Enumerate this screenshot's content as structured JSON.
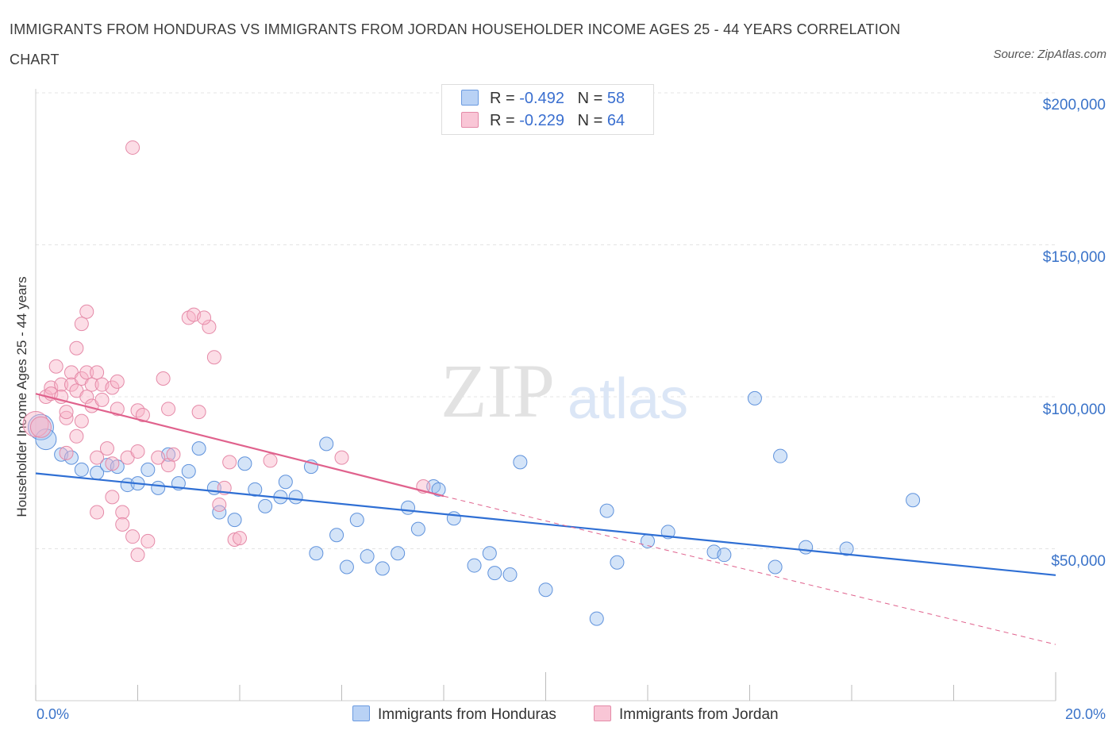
{
  "header": {
    "title": "IMMIGRANTS FROM HONDURAS VS IMMIGRANTS FROM JORDAN HOUSEHOLDER INCOME AGES 25 - 44 YEARS CORRELATION CHART",
    "source": "Source: ZipAtlas.com"
  },
  "watermark": {
    "zip": "ZIP",
    "atlas": "atlas"
  },
  "legend": {
    "r_label": "R =",
    "n_label": "N =",
    "rows": [
      {
        "r": "-0.492",
        "n": "58",
        "fill": "#b9d2f5",
        "stroke": "#6a9ae0"
      },
      {
        "r": "-0.229",
        "n": "64",
        "fill": "#f9c6d6",
        "stroke": "#e48aa8"
      }
    ]
  },
  "colors": {
    "honduras_point_fill": "rgba(160,195,240,0.45)",
    "honduras_point_stroke": "#5f92dc",
    "honduras_line": "#2f6fd4",
    "jordan_point_fill": "rgba(248,180,200,0.45)",
    "jordan_point_stroke": "#e58aa8",
    "jordan_line": "#e0628d",
    "axis_text": "#3a73c9",
    "grid": "#e4e4e4"
  },
  "chart_data": {
    "type": "scatter",
    "title": "IMMIGRANTS FROM HONDURAS VS IMMIGRANTS FROM JORDAN HOUSEHOLDER INCOME AGES 25 - 44 YEARS CORRELATION CHART",
    "xlabel": "",
    "ylabel": "Householder Income Ages 25 - 44 years",
    "xlim": [
      0,
      20
    ],
    "ylim": [
      0,
      200000
    ],
    "x_tick_labels": [
      "0.0%",
      "20.0%"
    ],
    "y_ticks": [
      50000,
      100000,
      150000,
      200000
    ],
    "y_tick_labels": [
      "$50,000",
      "$100,000",
      "$150,000",
      "$200,000"
    ],
    "grid": true,
    "legend_position": "top-center",
    "series": [
      {
        "name": "Immigrants from Honduras",
        "r": -0.492,
        "n": 58,
        "trend": {
          "x": [
            0,
            20
          ],
          "y": [
            74800,
            41300
          ]
        },
        "points": [
          [
            0.1,
            90000
          ],
          [
            0.2,
            86000
          ],
          [
            0.5,
            81000
          ],
          [
            0.7,
            80000
          ],
          [
            0.9,
            76000
          ],
          [
            1.2,
            75000
          ],
          [
            1.4,
            77500
          ],
          [
            1.6,
            77000
          ],
          [
            1.8,
            71000
          ],
          [
            2.0,
            71500
          ],
          [
            2.2,
            76000
          ],
          [
            2.4,
            70000
          ],
          [
            2.6,
            81000
          ],
          [
            2.8,
            71500
          ],
          [
            3.0,
            75500
          ],
          [
            3.2,
            83000
          ],
          [
            3.5,
            70000
          ],
          [
            3.6,
            62000
          ],
          [
            3.9,
            59500
          ],
          [
            4.1,
            78000
          ],
          [
            4.3,
            69500
          ],
          [
            4.5,
            64000
          ],
          [
            4.8,
            67000
          ],
          [
            4.9,
            72000
          ],
          [
            5.1,
            67000
          ],
          [
            5.4,
            77000
          ],
          [
            5.5,
            48500
          ],
          [
            5.7,
            84500
          ],
          [
            5.9,
            54500
          ],
          [
            6.1,
            44000
          ],
          [
            6.3,
            59500
          ],
          [
            6.5,
            47500
          ],
          [
            6.8,
            43500
          ],
          [
            7.1,
            48500
          ],
          [
            7.3,
            63500
          ],
          [
            7.5,
            56500
          ],
          [
            7.8,
            70500
          ],
          [
            7.9,
            69500
          ],
          [
            8.2,
            60000
          ],
          [
            8.6,
            44500
          ],
          [
            8.9,
            48500
          ],
          [
            9.0,
            42000
          ],
          [
            9.3,
            41500
          ],
          [
            9.5,
            78500
          ],
          [
            10.0,
            36500
          ],
          [
            11.0,
            27000
          ],
          [
            11.2,
            62500
          ],
          [
            11.4,
            45500
          ],
          [
            12.0,
            52500
          ],
          [
            12.4,
            55500
          ],
          [
            13.3,
            49000
          ],
          [
            13.5,
            48000
          ],
          [
            14.1,
            99500
          ],
          [
            14.5,
            44000
          ],
          [
            14.6,
            80500
          ],
          [
            15.1,
            50500
          ],
          [
            15.9,
            50000
          ],
          [
            17.2,
            66000
          ]
        ]
      },
      {
        "name": "Immigrants from Jordan",
        "r": -0.229,
        "n": 64,
        "trend": {
          "x": [
            0,
            8
          ],
          "y": [
            101000,
            67300
          ]
        },
        "trend_dashed": {
          "x": [
            8,
            20
          ],
          "y": [
            67300,
            18500
          ]
        },
        "points": [
          [
            0.0,
            91000
          ],
          [
            0.1,
            90000
          ],
          [
            0.2,
            100000
          ],
          [
            0.3,
            103000
          ],
          [
            0.3,
            101000
          ],
          [
            0.4,
            110000
          ],
          [
            0.5,
            104000
          ],
          [
            0.6,
            93000
          ],
          [
            0.6,
            81500
          ],
          [
            0.7,
            108000
          ],
          [
            0.7,
            104000
          ],
          [
            0.8,
            102000
          ],
          [
            0.8,
            87000
          ],
          [
            0.9,
            106000
          ],
          [
            0.9,
            92000
          ],
          [
            1.0,
            100000
          ],
          [
            1.0,
            108000
          ],
          [
            1.1,
            104000
          ],
          [
            1.1,
            97000
          ],
          [
            1.2,
            108000
          ],
          [
            1.2,
            80000
          ],
          [
            1.3,
            104000
          ],
          [
            1.3,
            99000
          ],
          [
            1.4,
            83000
          ],
          [
            1.5,
            103000
          ],
          [
            1.5,
            67000
          ],
          [
            1.6,
            96000
          ],
          [
            1.7,
            62000
          ],
          [
            1.7,
            58000
          ],
          [
            1.8,
            80000
          ],
          [
            1.9,
            54000
          ],
          [
            2.0,
            95500
          ],
          [
            2.0,
            48000
          ],
          [
            2.1,
            94000
          ],
          [
            2.2,
            52500
          ],
          [
            2.5,
            106000
          ],
          [
            2.6,
            77500
          ],
          [
            2.6,
            96000
          ],
          [
            2.7,
            81000
          ],
          [
            3.0,
            126000
          ],
          [
            3.1,
            127000
          ],
          [
            3.2,
            95000
          ],
          [
            3.4,
            123000
          ],
          [
            3.5,
            113000
          ],
          [
            3.6,
            64500
          ],
          [
            3.7,
            70000
          ],
          [
            3.8,
            78500
          ],
          [
            3.9,
            53000
          ],
          [
            4.0,
            53500
          ],
          [
            1.9,
            182000
          ],
          [
            1.0,
            128000
          ],
          [
            0.9,
            124000
          ],
          [
            0.8,
            116000
          ],
          [
            1.6,
            105000
          ],
          [
            0.5,
            100000
          ],
          [
            2.0,
            82000
          ],
          [
            2.4,
            80000
          ],
          [
            3.3,
            126000
          ],
          [
            4.6,
            79000
          ],
          [
            6.0,
            80000
          ],
          [
            7.6,
            70500
          ],
          [
            1.5,
            78000
          ],
          [
            0.6,
            95000
          ],
          [
            1.2,
            62000
          ]
        ]
      }
    ]
  },
  "x_axis": {
    "left_label": "0.0%",
    "right_label": "20.0%"
  },
  "y_axis": {
    "label": "Householder Income Ages 25 - 44 years",
    "tick_labels": [
      "$200,000",
      "$150,000",
      "$100,000",
      "$50,000"
    ]
  },
  "bottom_legend": {
    "items": [
      {
        "label": "Immigrants from Honduras"
      },
      {
        "label": "Immigrants from Jordan"
      }
    ]
  }
}
